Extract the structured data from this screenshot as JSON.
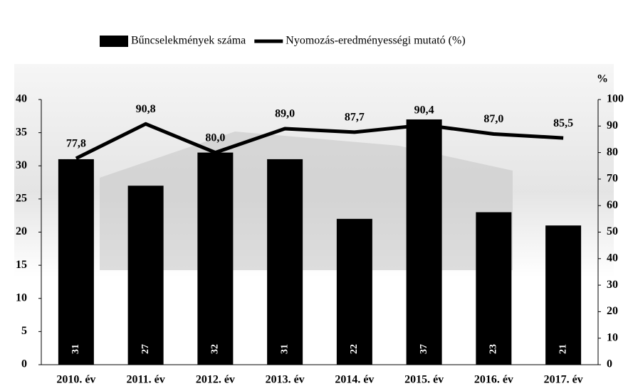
{
  "chart_data": {
    "type": "bar",
    "categories": [
      "2010. év",
      "2011. év",
      "2012. év",
      "2013. év",
      "2014. év",
      "2015. év",
      "2016. év",
      "2017. év"
    ],
    "series": [
      {
        "name": "Bűncselekmények száma",
        "type": "bar",
        "color": "#000000",
        "values": [
          31,
          27,
          32,
          31,
          22,
          37,
          23,
          21
        ]
      },
      {
        "name": "Nyomozás-eredményességi mutató (%)",
        "type": "line",
        "axis": "y2",
        "color": "#000000",
        "values": [
          77.8,
          90.8,
          80.0,
          89.0,
          87.7,
          90.4,
          87.0,
          85.5
        ],
        "value_labels": [
          "77,8",
          "90,8",
          "80,0",
          "89,0",
          "87,7",
          "90,4",
          "87,0",
          "85,5"
        ]
      }
    ],
    "ylim": [
      0,
      40
    ],
    "yticks": [
      0,
      5,
      10,
      15,
      20,
      25,
      30,
      35,
      40
    ],
    "y2lim": [
      0,
      100
    ],
    "y2ticks": [
      0,
      10,
      20,
      30,
      40,
      50,
      60,
      70,
      80,
      90,
      100
    ],
    "y2label": "%",
    "legend": "top"
  }
}
